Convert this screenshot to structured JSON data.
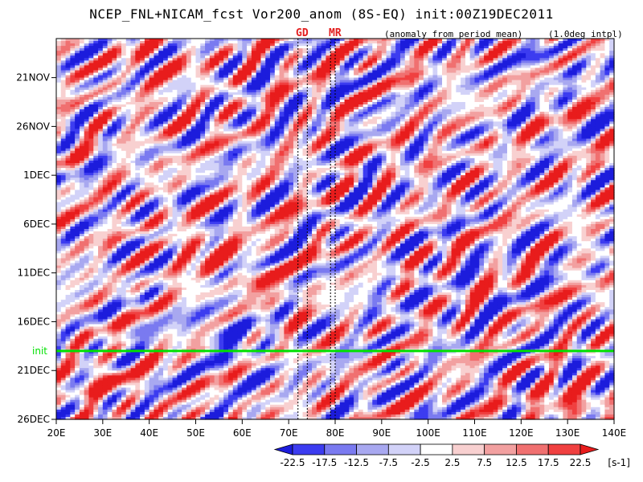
{
  "header": {
    "title": "NCEP_FNL+NICAM_fcst Vor200_anom (8S-EQ) init:00Z19DEC2011",
    "anomaly_note": "(anomaly from period mean)",
    "interp_note": "(1.0deg intpl)",
    "region_gd": "GD",
    "region_mr": "MR"
  },
  "chart_data": {
    "type": "heatmap",
    "title": "NCEP_FNL+NICAM_fcst Vor200_anom (8S-EQ) init:00Z19DEC2011",
    "variable": "Vor200_anom",
    "x_axis": {
      "range": [
        20,
        140
      ],
      "ticks": [
        20,
        30,
        40,
        50,
        60,
        70,
        80,
        90,
        100,
        110,
        120,
        130,
        140
      ],
      "tick_labels": [
        "20E",
        "30E",
        "40E",
        "50E",
        "60E",
        "70E",
        "80E",
        "90E",
        "100E",
        "110E",
        "120E",
        "130E",
        "140E"
      ]
    },
    "y_axis": {
      "range": [
        "2011-11-17",
        "2011-12-26"
      ],
      "reversed": true,
      "ticks": [
        "2011-11-21",
        "2011-11-26",
        "2011-12-01",
        "2011-12-06",
        "2011-12-11",
        "2011-12-16",
        "2011-12-21",
        "2011-12-26"
      ],
      "tick_labels": [
        "21NOV",
        "26NOV",
        "1DEC",
        "6DEC",
        "11DEC",
        "16DEC",
        "21DEC",
        "26DEC"
      ]
    },
    "init_line": {
      "date": "2011-12-19",
      "label": "init",
      "color": "#00e000"
    },
    "region_lines": [
      {
        "label": "GD",
        "lon": [
          72,
          74
        ]
      },
      {
        "label": "MR",
        "lon": [
          79,
          80
        ]
      }
    ],
    "colorbar": {
      "levels": [
        -22.5,
        -17.5,
        -12.5,
        -7.5,
        -2.5,
        2.5,
        7.5,
        12.5,
        17.5,
        22.5
      ],
      "labels": [
        "-22.5",
        "-17.5",
        "-12.5",
        "-7.5",
        "-2.5",
        "2.5",
        "7.5",
        "12.5",
        "17.5",
        "22.5"
      ],
      "colors": [
        "#1c1cdc",
        "#3c3cf0",
        "#7a7af0",
        "#a8a8f0",
        "#d2d2f8",
        "#ffffff",
        "#f8d0d0",
        "#f2a0a0",
        "#f07070",
        "#f04040",
        "#e81c1c"
      ],
      "unit": "[s-1]"
    },
    "features": [
      {
        "lon": 52,
        "date": "2011-12-09",
        "sign": "positive",
        "strength": 24
      },
      {
        "lon": 57,
        "date": "2011-12-17",
        "sign": "negative",
        "strength": -22
      },
      {
        "lon": 43,
        "date": "2011-11-20",
        "sign": "positive",
        "strength": 15
      },
      {
        "lon": 130,
        "date": "2011-12-24",
        "sign": "positive",
        "strength": 22
      },
      {
        "lon": 30,
        "date": "2011-12-22",
        "sign": "positive",
        "strength": 18
      },
      {
        "lon": 65,
        "date": "2011-12-12",
        "sign": "positive",
        "strength": 14
      },
      {
        "lon": 125,
        "date": "2011-11-19",
        "sign": "negative",
        "strength": -12
      },
      {
        "lon": 90,
        "date": "2011-12-14",
        "sign": "negative",
        "strength": -10
      },
      {
        "lon": 62,
        "date": "2011-12-21",
        "sign": "negative",
        "strength": -12
      }
    ]
  }
}
